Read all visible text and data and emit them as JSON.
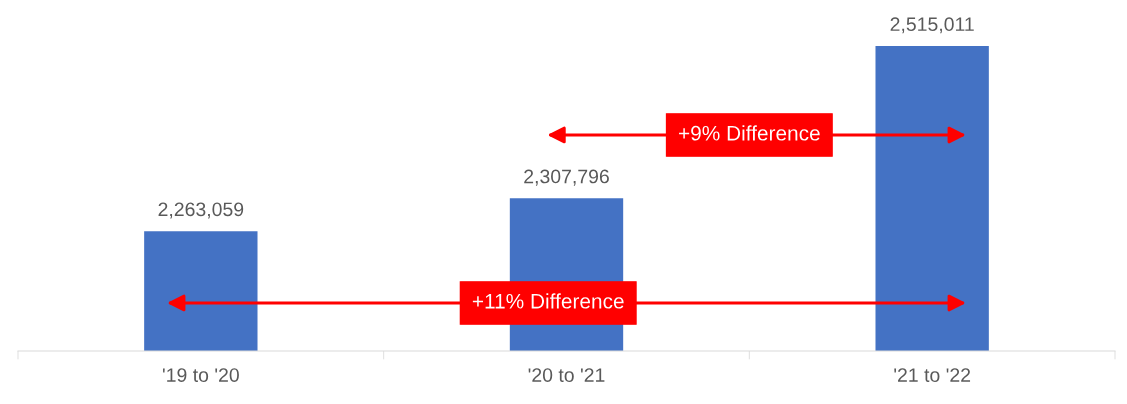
{
  "chart_data": {
    "type": "bar",
    "categories": [
      "'19 to '20",
      "'20 to '21",
      "'21 to '22"
    ],
    "values": [
      2263059,
      2307796,
      2515011
    ],
    "color": "#4472c4",
    "ylim": [
      2100000,
      2515011
    ],
    "tick_labels": "x",
    "data_labels": true,
    "value_labels": [
      "2,263,059",
      "2,307,796",
      "2,515,011"
    ],
    "grid": false,
    "legend": false,
    "annotations": [
      "+9% Difference",
      "+11% Difference"
    ]
  }
}
